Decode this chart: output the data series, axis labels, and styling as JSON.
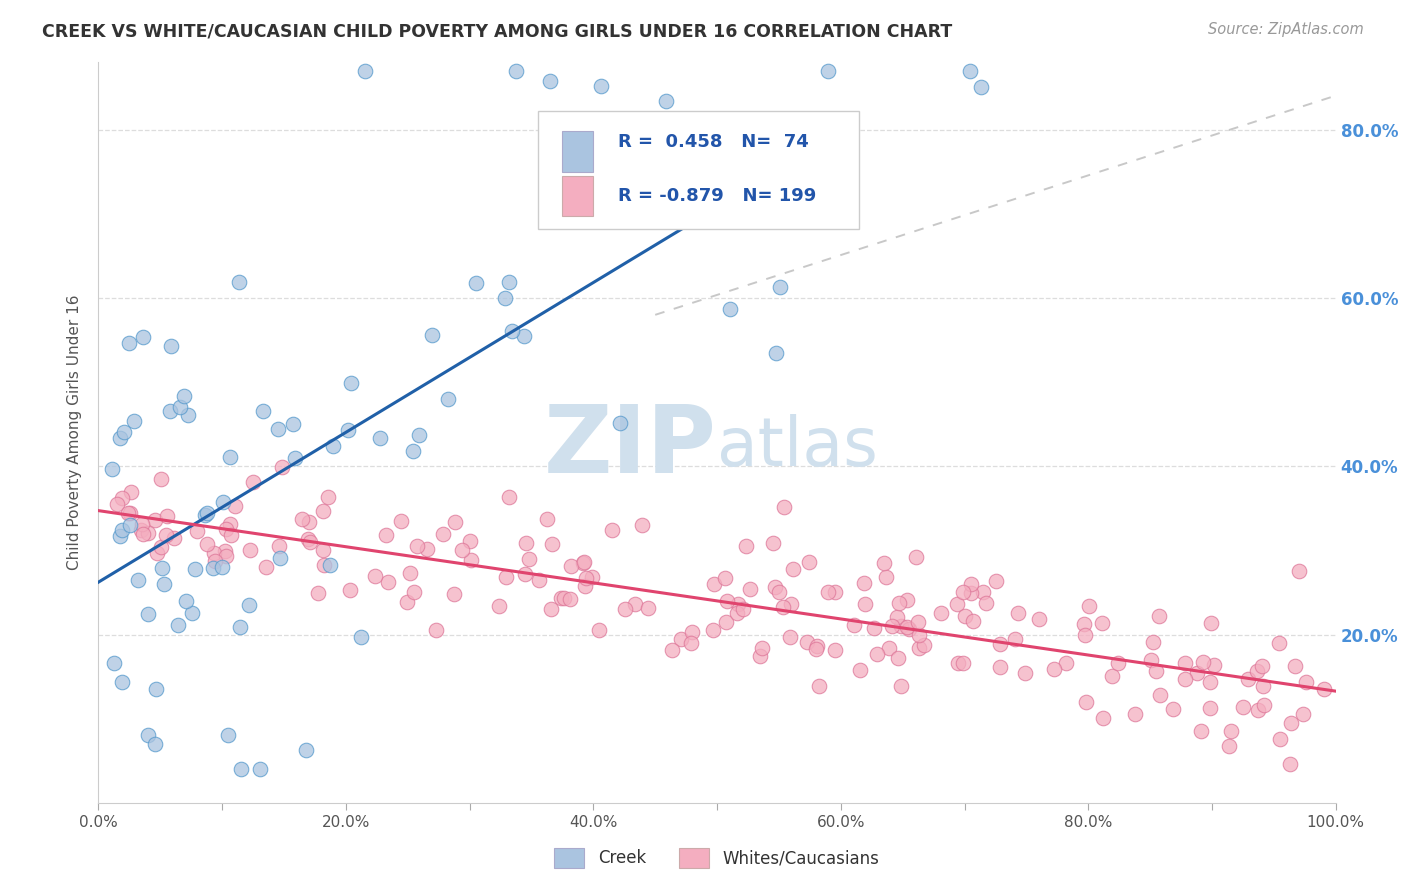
{
  "title": "CREEK VS WHITE/CAUCASIAN CHILD POVERTY AMONG GIRLS UNDER 16 CORRELATION CHART",
  "source": "Source: ZipAtlas.com",
  "ylabel": "Child Poverty Among Girls Under 16",
  "creek_R": 0.458,
  "creek_N": 74,
  "white_R": -0.879,
  "white_N": 199,
  "xlim": [
    0,
    1.0
  ],
  "ylim": [
    0,
    0.88
  ],
  "ytick_positions": [
    0.2,
    0.4,
    0.6,
    0.8
  ],
  "ytick_labels": [
    "20.0%",
    "40.0%",
    "60.0%",
    "80.0%"
  ],
  "creek_color": "#aac4e0",
  "creek_edge_color": "#5599cc",
  "creek_line_color": "#2060a8",
  "white_color": "#f4aec0",
  "white_edge_color": "#dd7799",
  "white_line_color": "#e0446e",
  "diag_line_color": "#bbbbbb",
  "background_color": "#ffffff",
  "grid_color": "#dddddd",
  "title_color": "#333333",
  "source_color": "#999999",
  "ytick_color": "#4a90d9",
  "legend_text_color": "#2255aa",
  "legend_r_color_creek": "#2255aa",
  "legend_r_color_white": "#2255aa",
  "watermark_zip_color": "#c8d8e8",
  "watermark_atlas_color": "#c8d8e8"
}
